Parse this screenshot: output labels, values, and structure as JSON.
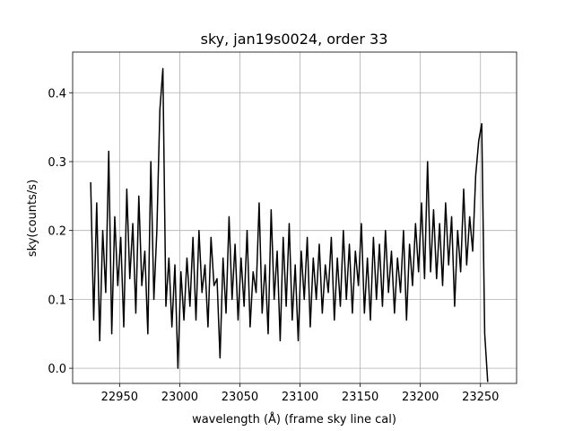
{
  "chart_data": {
    "type": "line",
    "title": "sky, jan19s0024, order 33",
    "xlabel": "wavelength (Å) (frame sky line cal)",
    "ylabel": "sky(counts/s)",
    "color": "#000000",
    "grid": true,
    "xlim": [
      22911,
      23280
    ],
    "ylim": [
      -0.022,
      0.459
    ],
    "xticks": [
      22950,
      23000,
      23050,
      23100,
      23150,
      23200,
      23250
    ],
    "yticks": [
      {
        "value": 0,
        "label": "0.0"
      },
      0.1,
      0.2,
      0.3,
      0.4
    ],
    "x": [
      22926,
      22928.5,
      22931,
      22933.5,
      22936,
      22938.5,
      22941,
      22943.5,
      22946,
      22948.5,
      22951,
      22953.5,
      22956,
      22958.5,
      22961,
      22963.5,
      22966,
      22968.5,
      22971,
      22973.5,
      22976,
      22978.5,
      22981,
      22983.5,
      22986,
      22988.5,
      22991,
      22993.5,
      22996,
      22998.5,
      23001,
      23003.5,
      23006,
      23008.5,
      23011,
      23013.5,
      23016,
      23018.5,
      23021,
      23023.5,
      23026,
      23028.5,
      23031,
      23033.5,
      23036,
      23038.5,
      23041,
      23043.5,
      23046,
      23048.5,
      23051,
      23053.5,
      23056,
      23058.5,
      23061,
      23063.5,
      23066,
      23068.5,
      23071,
      23073.5,
      23076,
      23078.5,
      23081,
      23083.5,
      23086,
      23088.5,
      23091,
      23093.5,
      23096,
      23098.5,
      23101,
      23103.5,
      23106,
      23108.5,
      23111,
      23113.5,
      23116,
      23118.5,
      23121,
      23123.5,
      23126,
      23128.5,
      23131,
      23133.5,
      23136,
      23138.5,
      23141,
      23143.5,
      23146,
      23148.5,
      23151,
      23153.5,
      23156,
      23158.5,
      23161,
      23163.5,
      23166,
      23168.5,
      23171,
      23173.5,
      23176,
      23178.5,
      23181,
      23183.5,
      23186,
      23188.5,
      23191,
      23193.5,
      23196,
      23198.5,
      23201,
      23203.5,
      23206,
      23208.5,
      23211,
      23213.5,
      23216,
      23218.5,
      23221,
      23223.5,
      23226,
      23228.5,
      23231,
      23233.5,
      23236,
      23238.5,
      23241,
      23243.5,
      23246,
      23248.5,
      23251,
      23253.5,
      23256
    ],
    "values": [
      0.27,
      0.07,
      0.24,
      0.04,
      0.2,
      0.11,
      0.315,
      0.05,
      0.22,
      0.12,
      0.19,
      0.06,
      0.26,
      0.13,
      0.21,
      0.08,
      0.25,
      0.12,
      0.17,
      0.05,
      0.3,
      0.1,
      0.2,
      0.375,
      0.435,
      0.09,
      0.16,
      0.06,
      0.15,
      0.0,
      0.14,
      0.07,
      0.16,
      0.09,
      0.19,
      0.07,
      0.2,
      0.11,
      0.15,
      0.06,
      0.19,
      0.12,
      0.13,
      0.015,
      0.16,
      0.08,
      0.22,
      0.1,
      0.18,
      0.07,
      0.16,
      0.09,
      0.2,
      0.06,
      0.14,
      0.11,
      0.24,
      0.08,
      0.15,
      0.05,
      0.23,
      0.1,
      0.17,
      0.04,
      0.19,
      0.09,
      0.21,
      0.07,
      0.15,
      0.04,
      0.17,
      0.1,
      0.19,
      0.06,
      0.16,
      0.1,
      0.18,
      0.08,
      0.15,
      0.11,
      0.19,
      0.07,
      0.16,
      0.09,
      0.2,
      0.1,
      0.18,
      0.08,
      0.17,
      0.12,
      0.21,
      0.08,
      0.16,
      0.07,
      0.19,
      0.1,
      0.18,
      0.09,
      0.2,
      0.11,
      0.17,
      0.08,
      0.16,
      0.11,
      0.2,
      0.07,
      0.18,
      0.12,
      0.21,
      0.14,
      0.24,
      0.13,
      0.3,
      0.14,
      0.23,
      0.13,
      0.21,
      0.12,
      0.24,
      0.15,
      0.22,
      0.09,
      0.2,
      0.14,
      0.26,
      0.15,
      0.22,
      0.17,
      0.28,
      0.33,
      0.355,
      0.05,
      -0.02
    ]
  }
}
